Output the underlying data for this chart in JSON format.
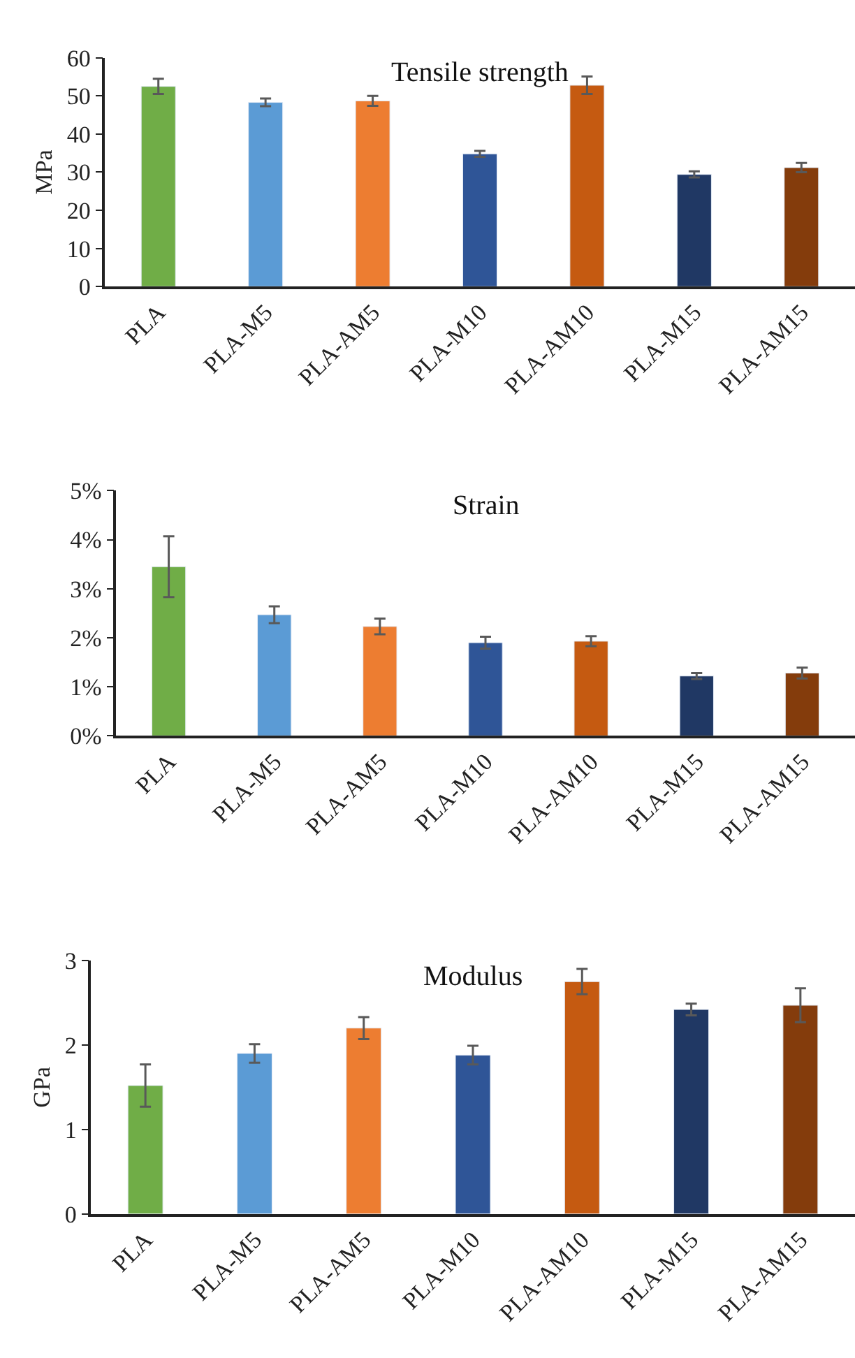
{
  "chart_data": [
    {
      "type": "bar",
      "title": "Tensile strength",
      "ylabel": "MPa",
      "categories": [
        "PLA",
        "PLA-M5",
        "PLA-AM5",
        "PLA-M10",
        "PLA-AM10",
        "PLA-M15",
        "PLA-AM15"
      ],
      "values": [
        52.5,
        48.3,
        48.7,
        34.8,
        52.8,
        29.4,
        31.2
      ],
      "errors": [
        2.0,
        1.0,
        1.3,
        0.8,
        2.3,
        0.8,
        1.2
      ],
      "colors": [
        "#70ad47",
        "#5b9bd5",
        "#ed7d31",
        "#2f5597",
        "#c55a11",
        "#203864",
        "#843c0c"
      ],
      "ylim": [
        0,
        60
      ],
      "yticks": [
        0,
        10,
        20,
        30,
        40,
        50,
        60
      ]
    },
    {
      "type": "bar",
      "title": "Strain",
      "categories": [
        "PLA",
        "PLA-M5",
        "PLA-AM5",
        "PLA-M10",
        "PLA-AM10",
        "PLA-M15",
        "PLA-AM15"
      ],
      "values": [
        3.45,
        2.47,
        2.23,
        1.9,
        1.93,
        1.22,
        1.28
      ],
      "errors": [
        0.62,
        0.17,
        0.16,
        0.12,
        0.1,
        0.06,
        0.11
      ],
      "colors": [
        "#70ad47",
        "#5b9bd5",
        "#ed7d31",
        "#2f5597",
        "#c55a11",
        "#203864",
        "#843c0c"
      ],
      "ylim": [
        0,
        5
      ],
      "yticks": [
        {
          "value": 0,
          "label": "0%"
        },
        {
          "value": 1,
          "label": "1%"
        },
        {
          "value": 2,
          "label": "2%"
        },
        {
          "value": 3,
          "label": "3%"
        },
        {
          "value": 4,
          "label": "4%"
        },
        {
          "value": 5,
          "label": "5%"
        }
      ]
    },
    {
      "type": "bar",
      "title": "Modulus",
      "ylabel": "GPa",
      "categories": [
        "PLA",
        "PLA-M5",
        "PLA-AM5",
        "PLA-M10",
        "PLA-AM10",
        "PLA-M15",
        "PLA-AM15"
      ],
      "values": [
        1.52,
        1.9,
        2.2,
        1.88,
        2.75,
        2.42,
        2.47
      ],
      "errors": [
        0.25,
        0.11,
        0.13,
        0.11,
        0.15,
        0.07,
        0.2
      ],
      "colors": [
        "#70ad47",
        "#5b9bd5",
        "#ed7d31",
        "#2f5597",
        "#c55a11",
        "#203864",
        "#843c0c"
      ],
      "ylim": [
        0,
        3
      ],
      "yticks": [
        0,
        1,
        2,
        3
      ]
    }
  ]
}
